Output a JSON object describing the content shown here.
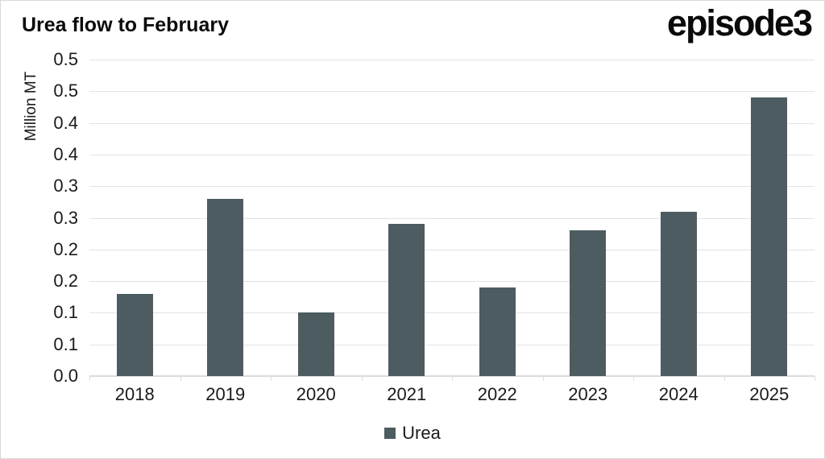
{
  "header": {
    "title": "Urea flow to February",
    "logo": "episode3"
  },
  "legend": {
    "label": "Urea"
  },
  "colors": {
    "bar": "#4d5c60",
    "gridline": "#e3e3e3",
    "axis_line": "#dcdcdc",
    "border": "#d9d9d9",
    "text": "#1a1a1a"
  },
  "chart_data": {
    "type": "bar",
    "title": "Urea flow to February",
    "categories": [
      "2018",
      "2019",
      "2020",
      "2021",
      "2022",
      "2023",
      "2024",
      "2025"
    ],
    "series": [
      {
        "name": "Urea",
        "values": [
          0.13,
          0.28,
          0.1,
          0.24,
          0.14,
          0.23,
          0.26,
          0.44
        ]
      }
    ],
    "xlabel": "",
    "ylabel": "Million MT",
    "ylim": [
      0,
      0.5
    ],
    "y_tick_step": 0.05,
    "y_tick_labels": [
      "0.5",
      "0.5",
      "0.4",
      "0.4",
      "0.3",
      "0.3",
      "0.2",
      "0.2",
      "0.1",
      "0.1",
      "0.0"
    ],
    "grid": true,
    "legend_position": "bottom"
  }
}
